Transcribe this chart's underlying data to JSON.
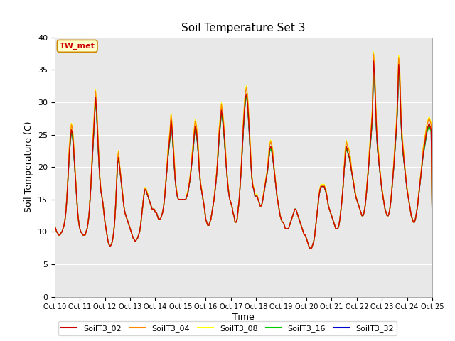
{
  "title": "Soil Temperature Set 3",
  "xlabel": "Time",
  "ylabel": "Soil Temperature (C)",
  "annotation": "TW_met",
  "ylim": [
    0,
    40
  ],
  "yticks": [
    0,
    5,
    10,
    15,
    20,
    25,
    30,
    35,
    40
  ],
  "series_names": [
    "SoilT3_02",
    "SoilT3_04",
    "SoilT3_08",
    "SoilT3_16",
    "SoilT3_32"
  ],
  "series_colors": [
    "#cc0000",
    "#ff8800",
    "#ffff00",
    "#00cc00",
    "#0000cc"
  ],
  "background_color": "#e8e8e8",
  "fig_background": "#ffffff",
  "xtick_labels": [
    "Oct 10",
    "Oct 11",
    "Oct 12",
    "Oct 13",
    "Oct 14",
    "Oct 15",
    "Oct 16",
    "Oct 17",
    "Oct 18",
    "Oct 19",
    "Oct 20",
    "Oct 21",
    "Oct 22",
    "Oct 23",
    "Oct 24",
    "Oct 25"
  ],
  "n_points": 361,
  "base_pattern": [
    11.0,
    10.5,
    10.0,
    9.8,
    9.5,
    9.5,
    9.8,
    10.0,
    10.5,
    11.0,
    12.0,
    13.5,
    16.0,
    19.0,
    22.0,
    24.0,
    25.5,
    25.0,
    23.0,
    20.5,
    18.0,
    15.5,
    13.0,
    11.5,
    10.5,
    10.0,
    9.8,
    9.5,
    9.5,
    9.5,
    10.0,
    10.5,
    11.5,
    13.0,
    15.5,
    18.5,
    21.5,
    24.5,
    27.5,
    30.5,
    28.5,
    25.0,
    21.5,
    18.5,
    16.5,
    15.5,
    14.5,
    13.0,
    11.5,
    10.5,
    9.5,
    8.5,
    8.0,
    7.8,
    8.0,
    8.5,
    9.5,
    11.0,
    13.5,
    17.0,
    20.5,
    21.5,
    20.0,
    18.5,
    17.0,
    15.5,
    14.0,
    13.0,
    12.5,
    12.0,
    11.5,
    11.0,
    10.5,
    10.0,
    9.5,
    9.0,
    8.8,
    8.5,
    8.8,
    9.0,
    9.5,
    10.0,
    11.0,
    12.5,
    14.0,
    15.5,
    16.5,
    16.5,
    16.0,
    15.5,
    15.0,
    14.5,
    14.0,
    13.5,
    13.5,
    13.5,
    13.0,
    13.0,
    12.5,
    12.0,
    12.0,
    12.0,
    12.5,
    13.0,
    14.0,
    15.5,
    17.5,
    19.5,
    21.5,
    23.0,
    24.5,
    27.0,
    25.5,
    23.0,
    20.5,
    18.0,
    16.5,
    15.5,
    15.0,
    15.0,
    15.0,
    15.0,
    15.0,
    15.0,
    15.0,
    15.0,
    15.5,
    16.0,
    17.0,
    18.0,
    19.5,
    21.0,
    22.5,
    24.5,
    26.0,
    25.5,
    24.0,
    22.0,
    19.5,
    17.5,
    16.5,
    15.5,
    14.5,
    13.5,
    12.0,
    11.5,
    11.0,
    11.0,
    11.5,
    12.0,
    13.0,
    14.0,
    15.0,
    16.5,
    18.0,
    20.0,
    22.5,
    25.0,
    26.5,
    28.5,
    27.5,
    26.0,
    24.0,
    21.5,
    19.5,
    17.5,
    16.0,
    15.0,
    14.5,
    14.0,
    13.0,
    12.5,
    11.5,
    11.5,
    12.0,
    13.5,
    15.0,
    17.5,
    20.0,
    23.0,
    26.0,
    28.5,
    30.5,
    31.0,
    29.5,
    27.0,
    24.0,
    21.0,
    18.5,
    17.0,
    16.5,
    15.5,
    15.5,
    15.5,
    15.0,
    14.5,
    14.0,
    14.0,
    14.5,
    15.5,
    16.5,
    17.5,
    18.5,
    19.5,
    21.0,
    22.5,
    23.0,
    22.5,
    21.5,
    20.0,
    18.5,
    17.0,
    15.5,
    14.5,
    13.5,
    12.5,
    12.0,
    11.5,
    11.5,
    11.0,
    10.5,
    10.5,
    10.5,
    10.5,
    11.0,
    11.5,
    12.0,
    12.5,
    13.0,
    13.5,
    13.5,
    13.0,
    12.5,
    12.0,
    11.5,
    11.0,
    10.5,
    10.0,
    9.5,
    9.5,
    9.0,
    8.5,
    8.0,
    7.5,
    7.5,
    7.5,
    8.0,
    8.5,
    9.5,
    11.0,
    12.5,
    14.0,
    15.5,
    16.5,
    17.0,
    17.0,
    17.0,
    17.0,
    16.5,
    16.0,
    15.0,
    14.0,
    13.5,
    13.0,
    12.5,
    12.0,
    11.5,
    11.0,
    10.5,
    10.5,
    10.5,
    11.0,
    12.0,
    13.5,
    15.0,
    17.0,
    19.5,
    21.5,
    23.0,
    22.5,
    22.0,
    21.5,
    20.5,
    19.5,
    18.5,
    17.5,
    16.5,
    15.5,
    15.0,
    14.5,
    14.0,
    13.5,
    13.0,
    12.5,
    12.5,
    13.0,
    14.0,
    15.5,
    17.5,
    19.5,
    21.5,
    23.5,
    25.5,
    28.0,
    36.0,
    34.0,
    29.0,
    25.0,
    22.5,
    21.0,
    19.5,
    18.0,
    16.5,
    15.5,
    14.5,
    13.5,
    13.0,
    12.5,
    12.5,
    13.0,
    14.0,
    15.5,
    17.5,
    19.5,
    21.5,
    24.0,
    26.0,
    30.0,
    35.5,
    33.5,
    28.0,
    24.5,
    22.5,
    21.0,
    19.5,
    18.0,
    16.5,
    15.5,
    14.5,
    13.5,
    12.5,
    12.0,
    11.5,
    11.5,
    12.0,
    13.0,
    14.0,
    15.5,
    17.0,
    18.5,
    20.0,
    21.5,
    22.5,
    23.5,
    24.5,
    25.5,
    26.0,
    26.5,
    26.0,
    25.5,
    10.5
  ]
}
